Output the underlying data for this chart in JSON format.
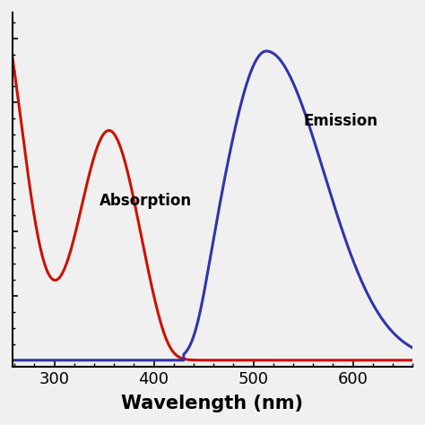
{
  "absorption_color": "#cc1100",
  "emission_color": "#3333aa",
  "background_color": "#f0f0f0",
  "xlabel": "Wavelength (nm)",
  "xlabel_fontsize": 15,
  "xlabel_fontweight": "bold",
  "annotation_absorption": "Absorption",
  "annotation_emission": "Emission",
  "annotation_fontsize": 12,
  "annotation_fontweight": "bold",
  "xlim": [
    258,
    660
  ],
  "ylim": [
    -0.02,
    1.08
  ],
  "xticks": [
    300,
    400,
    500,
    600
  ],
  "tick_fontsize": 13,
  "line_width": 2.2
}
